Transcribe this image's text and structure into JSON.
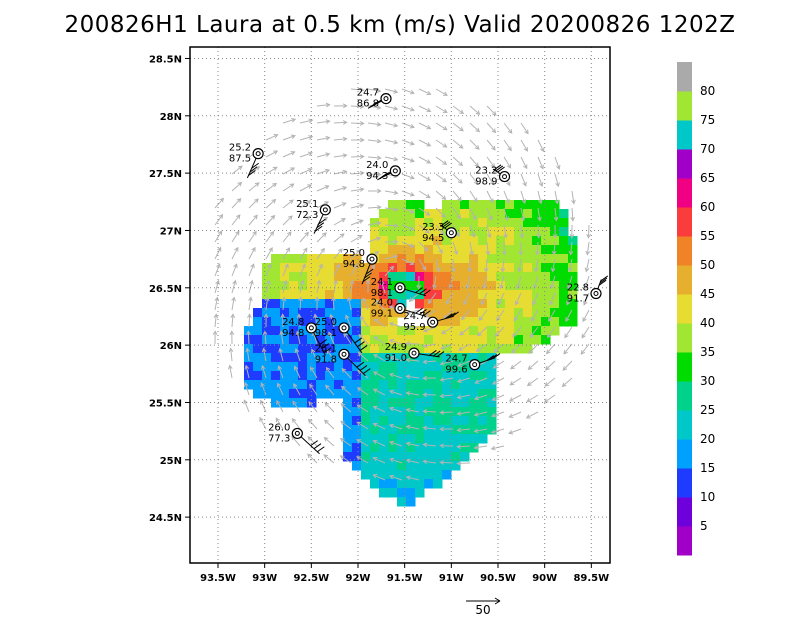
{
  "title": "200826H1 Laura at 0.5 km (m/s) Valid 20200826  1202Z",
  "map": {
    "lon_range": [
      -93.8,
      -89.3
    ],
    "lat_range": [
      24.1,
      28.6
    ],
    "x_ticks": [
      {
        "lon": -93.5,
        "label": "93.5W"
      },
      {
        "lon": -93.0,
        "label": "93W"
      },
      {
        "lon": -92.5,
        "label": "92.5W"
      },
      {
        "lon": -92.0,
        "label": "92W"
      },
      {
        "lon": -91.5,
        "label": "91.5W"
      },
      {
        "lon": -91.0,
        "label": "91W"
      },
      {
        "lon": -90.5,
        "label": "90.5W"
      },
      {
        "lon": -90.0,
        "label": "90W"
      },
      {
        "lon": -89.5,
        "label": "89.5W"
      }
    ],
    "y_ticks": [
      {
        "lat": 24.5,
        "label": "24.5N"
      },
      {
        "lat": 25.0,
        "label": "25N"
      },
      {
        "lat": 25.5,
        "label": "25.5N"
      },
      {
        "lat": 26.0,
        "label": "26N"
      },
      {
        "lat": 26.5,
        "label": "26.5N"
      },
      {
        "lat": 27.0,
        "label": "27N"
      },
      {
        "lat": 27.5,
        "label": "27.5N"
      },
      {
        "lat": 28.0,
        "label": "28N"
      },
      {
        "lat": 28.5,
        "label": "28.5N"
      }
    ],
    "grid": "dotted",
    "storm_center": {
      "lon": -91.55,
      "lat": 26.55
    }
  },
  "stations": [
    {
      "lon": -91.7,
      "lat": 28.15,
      "top": "24.7",
      "bottom": "86.8"
    },
    {
      "lon": -93.07,
      "lat": 27.67,
      "top": "25.2",
      "bottom": "87.5"
    },
    {
      "lon": -91.6,
      "lat": 27.52,
      "top": "24.0",
      "bottom": "94.3"
    },
    {
      "lon": -90.43,
      "lat": 27.47,
      "top": "23.2",
      "bottom": "98.9"
    },
    {
      "lon": -92.35,
      "lat": 27.18,
      "top": "25.1",
      "bottom": "72.3"
    },
    {
      "lon": -91.0,
      "lat": 26.98,
      "top": "23.3",
      "bottom": "94.5"
    },
    {
      "lon": -89.45,
      "lat": 26.45,
      "top": "22.8",
      "bottom": "91.7"
    },
    {
      "lon": -91.85,
      "lat": 26.75,
      "top": "25.0",
      "bottom": "94.8"
    },
    {
      "lon": -91.55,
      "lat": 26.5,
      "top": "24.1",
      "bottom": "98.1"
    },
    {
      "lon": -91.55,
      "lat": 26.32,
      "top": "24.0",
      "bottom": "99.1"
    },
    {
      "lon": -92.5,
      "lat": 26.15,
      "top": "24.8",
      "bottom": "94.8"
    },
    {
      "lon": -92.15,
      "lat": 26.15,
      "top": "25.0",
      "bottom": "98.1"
    },
    {
      "lon": -91.2,
      "lat": 26.2,
      "top": "24.7",
      "bottom": "95.9"
    },
    {
      "lon": -92.15,
      "lat": 25.92,
      "top": "25.1",
      "bottom": "91.8"
    },
    {
      "lon": -91.4,
      "lat": 25.93,
      "top": "24.9",
      "bottom": "91.0"
    },
    {
      "lon": -90.75,
      "lat": 25.83,
      "top": "24.7",
      "bottom": "99.6"
    },
    {
      "lon": -92.65,
      "lat": 25.23,
      "top": "26.0",
      "bottom": "77.3"
    }
  ],
  "colorbar": {
    "levels": [
      {
        "label": "5",
        "color": "#a000c8"
      },
      {
        "label": "10",
        "color": "#6e00dc"
      },
      {
        "label": "15",
        "color": "#1e3cff"
      },
      {
        "label": "20",
        "color": "#00a0ff"
      },
      {
        "label": "25",
        "color": "#00c8c8"
      },
      {
        "label": "30",
        "color": "#00d28c"
      },
      {
        "label": "35",
        "color": "#00dc00"
      },
      {
        "label": "40",
        "color": "#a0e632"
      },
      {
        "label": "45",
        "color": "#e6dc32"
      },
      {
        "label": "50",
        "color": "#e6af2d"
      },
      {
        "label": "55",
        "color": "#f08228"
      },
      {
        "label": "60",
        "color": "#fa3c3c"
      },
      {
        "label": "65",
        "color": "#f00082"
      },
      {
        "label": "70",
        "color": "#a000c8"
      },
      {
        "label": "75",
        "color": "#00c8c8"
      },
      {
        "label": "80",
        "color": "#a0e632"
      },
      {
        "label": "",
        "color": "#aaaaaa"
      }
    ]
  },
  "vector_scale": {
    "label": "50"
  },
  "colors": {
    "vector": "#b4b4b4",
    "grid": "#888888",
    "frame": "#000000"
  }
}
